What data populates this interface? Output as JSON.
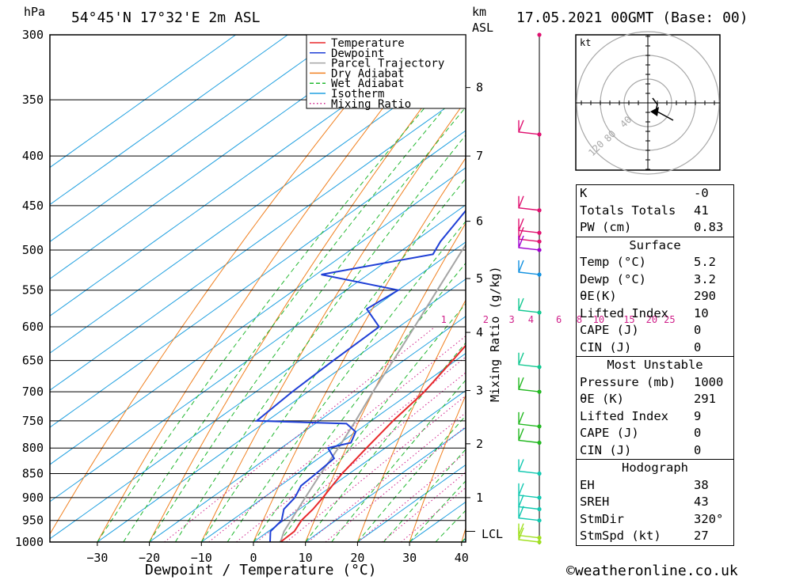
{
  "header": {
    "location": "54°45'N 17°32'E 2m ASL",
    "datetime": "17.05.2021 00GMT (Base: 00)",
    "pressure_unit": "hPa",
    "height_unit": "km",
    "height_unit2": "ASL"
  },
  "axes": {
    "xlabel": "Dewpoint / Temperature (°C)",
    "mixing_label": "Mixing Ratio (g/kg)",
    "lcl_label": "LCL"
  },
  "chart_data": {
    "type": "line",
    "subtype": "skew-T log-P diagram",
    "pressure_levels": [
      300,
      350,
      400,
      450,
      500,
      550,
      600,
      650,
      700,
      750,
      800,
      850,
      900,
      950,
      1000
    ],
    "x_ticks": [
      -30,
      -20,
      -10,
      0,
      10,
      20,
      30,
      40
    ],
    "x_range": [
      -40,
      40
    ],
    "y_range": [
      1000,
      300
    ],
    "y_scale": "log",
    "height_km_ticks": [
      {
        "label": "1",
        "p": 900
      },
      {
        "label": "2",
        "p": 792
      },
      {
        "label": "3",
        "p": 698
      },
      {
        "label": "4",
        "p": 608
      },
      {
        "label": "5",
        "p": 535
      },
      {
        "label": "6",
        "p": 467
      },
      {
        "label": "7",
        "p": 400
      },
      {
        "label": "8",
        "p": 340
      }
    ],
    "lcl_pressure": 975,
    "mixing_ratio_labels": [
      "1",
      "2",
      "3",
      "4",
      "6",
      "8",
      "10",
      "15",
      "20",
      "25"
    ],
    "mixing_ratio_label_pressure": 590,
    "legend": [
      {
        "name": "Temperature",
        "color": "#e8292b",
        "style": "solid"
      },
      {
        "name": "Dewpoint",
        "color": "#1f3fd6",
        "style": "solid"
      },
      {
        "name": "Parcel Trajectory",
        "color": "#a5a5a5",
        "style": "solid"
      },
      {
        "name": "Dry Adiabat",
        "color": "#f08020",
        "style": "solid"
      },
      {
        "name": "Wet Adiabat",
        "color": "#22b830",
        "style": "dashed"
      },
      {
        "name": "Isotherm",
        "color": "#20a0e0",
        "style": "solid"
      },
      {
        "name": "Mixing Ratio",
        "color": "#d0208a",
        "style": "dotted"
      }
    ],
    "series": [
      {
        "name": "Temperature",
        "points": [
          [
            1000,
            5.2
          ],
          [
            975,
            5.0
          ],
          [
            950,
            3.4
          ],
          [
            925,
            2.6
          ],
          [
            900,
            1.4
          ],
          [
            875,
            0.0
          ],
          [
            850,
            -1.4
          ],
          [
            800,
            -3.6
          ],
          [
            750,
            -5.8
          ],
          [
            700,
            -7.6
          ],
          [
            650,
            -10.6
          ],
          [
            600,
            -14.0
          ],
          [
            550,
            -18.0
          ],
          [
            525,
            -19.0
          ],
          [
            500,
            -19.6
          ],
          [
            475,
            -21.0
          ],
          [
            450,
            -24.0
          ],
          [
            400,
            -30.2
          ],
          [
            375,
            -34.5
          ],
          [
            350,
            -38.5
          ],
          [
            320,
            -44.0
          ],
          [
            300,
            -47.5
          ]
        ]
      },
      {
        "name": "Dewpoint",
        "points": [
          [
            1000,
            3.2
          ],
          [
            975,
            0.4
          ],
          [
            950,
            -0.4
          ],
          [
            925,
            -3.0
          ],
          [
            900,
            -4.0
          ],
          [
            875,
            -6.0
          ],
          [
            850,
            -6.4
          ],
          [
            820,
            -7.0
          ],
          [
            800,
            -11.0
          ],
          [
            790,
            -8.0
          ],
          [
            770,
            -10.0
          ],
          [
            755,
            -14.0
          ],
          [
            750,
            -32.0
          ],
          [
            700,
            -33.0
          ],
          [
            650,
            -33.5
          ],
          [
            600,
            -33.8
          ],
          [
            575,
            -41.0
          ],
          [
            550,
            -40.0
          ],
          [
            530,
            -59.0
          ],
          [
            505,
            -43.0
          ],
          [
            490,
            -45.0
          ],
          [
            450,
            -49.0
          ],
          [
            420,
            -52.0
          ],
          [
            400,
            -52.0
          ],
          [
            375,
            -50.0
          ],
          [
            360,
            -52.0
          ],
          [
            340,
            -54.0
          ],
          [
            330,
            -54.0
          ],
          [
            320,
            -53.0
          ],
          [
            300,
            -56.0
          ]
        ]
      },
      {
        "name": "Parcel Trajectory",
        "points": [
          [
            1000,
            5.2
          ],
          [
            975,
            3.0
          ],
          [
            900,
            -2.0
          ],
          [
            850,
            -5.5
          ],
          [
            800,
            -9.0
          ],
          [
            750,
            -13.0
          ],
          [
            700,
            -17.5
          ],
          [
            650,
            -22.0
          ],
          [
            600,
            -27.0
          ],
          [
            550,
            -32.5
          ],
          [
            500,
            -38.5
          ],
          [
            450,
            -45.0
          ],
          [
            400,
            -52.0
          ],
          [
            350,
            -59.5
          ],
          [
            300,
            -67.0
          ]
        ]
      }
    ],
    "wind_barbs_pressures": [
      300,
      380,
      455,
      480,
      490,
      500,
      530,
      580,
      660,
      700,
      760,
      790,
      850,
      900,
      925,
      950,
      990,
      1000
    ],
    "hodograph": {
      "unit": "kt",
      "ring_labels": [
        "40",
        "80",
        "120"
      ]
    }
  },
  "info_table": {
    "top": [
      {
        "label": "K",
        "value": "-0"
      },
      {
        "label": "Totals Totals",
        "value": "41"
      },
      {
        "label": "PW (cm)",
        "value": "0.83"
      }
    ],
    "surface": {
      "title": "Surface",
      "rows": [
        {
          "label": "Temp (°C)",
          "value": "5.2"
        },
        {
          "label": "Dewp (°C)",
          "value": "3.2"
        },
        {
          "label": "θE(K)",
          "value": "290"
        },
        {
          "label": "Lifted Index",
          "value": "10"
        },
        {
          "label": "CAPE (J)",
          "value": "0"
        },
        {
          "label": "CIN (J)",
          "value": "0"
        }
      ]
    },
    "most_unstable": {
      "title": "Most Unstable",
      "rows": [
        {
          "label": "Pressure (mb)",
          "value": "1000"
        },
        {
          "label": "θE (K)",
          "value": "291"
        },
        {
          "label": "Lifted Index",
          "value": "9"
        },
        {
          "label": "CAPE (J)",
          "value": "0"
        },
        {
          "label": "CIN (J)",
          "value": "0"
        }
      ]
    },
    "hodograph": {
      "title": "Hodograph",
      "rows": [
        {
          "label": "EH",
          "value": "38"
        },
        {
          "label": "SREH",
          "value": "43"
        },
        {
          "label": "StmDir",
          "value": "320°"
        },
        {
          "label": "StmSpd (kt)",
          "value": "27"
        }
      ]
    }
  },
  "credit": "©weatheronline.co.uk"
}
